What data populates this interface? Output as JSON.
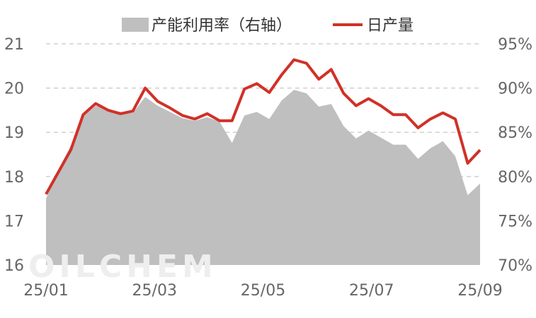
{
  "chart_data": {
    "type": "area",
    "title": "",
    "xlabel": "",
    "ylabel": "",
    "y_left": {
      "min": 16,
      "max": 21,
      "ticks": [
        "16",
        "17",
        "18",
        "19",
        "20",
        "21"
      ]
    },
    "y_right": {
      "min": 70,
      "max": 95,
      "ticks": [
        "70%",
        "75%",
        "80%",
        "85%",
        "90%",
        "95%"
      ]
    },
    "x_ticks": [
      "25/01",
      "25/03",
      "25/05",
      "25/07",
      "25/09"
    ],
    "grid": true,
    "legend_position": "top",
    "watermark": "OILCHEM",
    "series": [
      {
        "name": "产能利用率（右轴）",
        "type": "area",
        "axis": "right",
        "color": "#bfbfbf",
        "values": [
          77.5,
          80.8,
          83.5,
          86.8,
          88.0,
          87.6,
          87.3,
          87.2,
          89.0,
          88.0,
          87.3,
          86.6,
          86.3,
          86.7,
          86.2,
          83.8,
          86.9,
          87.3,
          86.5,
          88.6,
          89.8,
          89.4,
          87.9,
          88.2,
          85.7,
          84.3,
          85.2,
          84.4,
          83.6,
          83.6,
          82.0,
          83.2,
          84.0,
          82.3,
          77.9,
          79.2
        ]
      },
      {
        "name": "日产量",
        "type": "line",
        "axis": "left",
        "color": "#d03128",
        "values": [
          17.6,
          18.1,
          18.6,
          19.4,
          19.65,
          19.5,
          19.42,
          19.48,
          20.0,
          19.7,
          19.55,
          19.38,
          19.3,
          19.42,
          19.26,
          19.26,
          19.98,
          20.1,
          19.9,
          20.3,
          20.64,
          20.56,
          20.2,
          20.42,
          19.88,
          19.6,
          19.76,
          19.6,
          19.4,
          19.4,
          19.1,
          19.3,
          19.44,
          19.3,
          18.3,
          18.6
        ]
      }
    ]
  }
}
